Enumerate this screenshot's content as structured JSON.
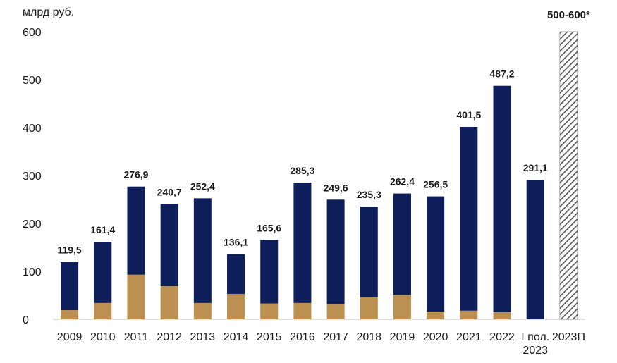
{
  "chart_data": {
    "type": "bar",
    "unit_label": "млрд руб.",
    "categories": [
      "2009",
      "2010",
      "2011",
      "2012",
      "2013",
      "2014",
      "2015",
      "2016",
      "2017",
      "2018",
      "2019",
      "2020",
      "2021",
      "2022",
      "I пол.\n2023",
      "2023П"
    ],
    "category_lines": [
      [
        "2009"
      ],
      [
        "2010"
      ],
      [
        "2011"
      ],
      [
        "2012"
      ],
      [
        "2013"
      ],
      [
        "2014"
      ],
      [
        "2015"
      ],
      [
        "2016"
      ],
      [
        "2017"
      ],
      [
        "2018"
      ],
      [
        "2019"
      ],
      [
        "2020"
      ],
      [
        "2021"
      ],
      [
        "2022"
      ],
      [
        "I пол.",
        "2023"
      ],
      [
        "2023П"
      ]
    ],
    "series": [
      {
        "color": "#bb9050",
        "values": [
          19,
          34,
          93,
          69,
          34,
          53,
          33,
          34,
          32,
          46,
          51,
          16,
          18,
          15,
          0,
          null
        ]
      },
      {
        "color": "#0e1e5b",
        "values": [
          100.5,
          127.4,
          183.9,
          171.7,
          218.4,
          83.1,
          132.6,
          251.3,
          217.6,
          189.3,
          211.4,
          240.5,
          383.5,
          472.2,
          291.1,
          null
        ]
      }
    ],
    "totals": [
      "119,5",
      "161,4",
      "276,9",
      "240,7",
      "252,4",
      "136,1",
      "165,6",
      "285,3",
      "249,6",
      "235,3",
      "262,4",
      "256,5",
      "401,5",
      "487,2",
      "291,1",
      "500-600*"
    ],
    "forecast": {
      "category": "2023П",
      "range": [
        500,
        600
      ],
      "pattern": "hatched",
      "color": "#555555"
    },
    "yticks": [
      0,
      100,
      200,
      300,
      400,
      500,
      600
    ],
    "ylim": [
      0,
      600
    ],
    "grid": false
  }
}
